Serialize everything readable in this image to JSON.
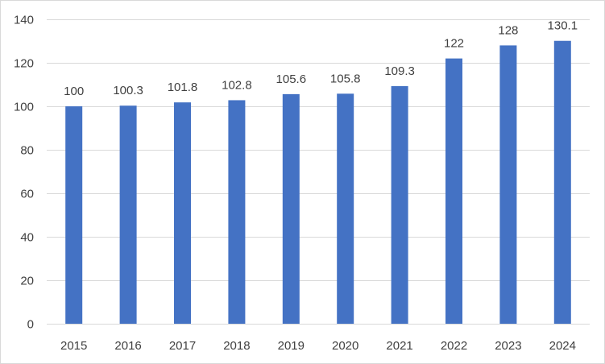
{
  "chart_data": {
    "type": "bar",
    "categories": [
      "2015",
      "2016",
      "2017",
      "2018",
      "2019",
      "2020",
      "2021",
      "2022",
      "2023",
      "2024"
    ],
    "values": [
      100,
      100.3,
      101.8,
      102.8,
      105.6,
      105.8,
      109.3,
      122,
      128,
      130.1
    ],
    "data_labels": [
      "100",
      "100.3",
      "101.8",
      "102.8",
      "105.6",
      "105.8",
      "109.3",
      "122",
      "128",
      "130.1"
    ],
    "title": "",
    "xlabel": "",
    "ylabel": "",
    "ylim": [
      0,
      140
    ],
    "yticks": [
      0,
      20,
      40,
      60,
      80,
      100,
      120,
      140
    ],
    "ytick_labels": [
      "0",
      "20",
      "40",
      "60",
      "80",
      "100",
      "120",
      "140"
    ],
    "grid": true,
    "legend": "none",
    "bar_color": "#4472C4",
    "grid_color": "#D9D9D9",
    "text_color": "#404040"
  }
}
